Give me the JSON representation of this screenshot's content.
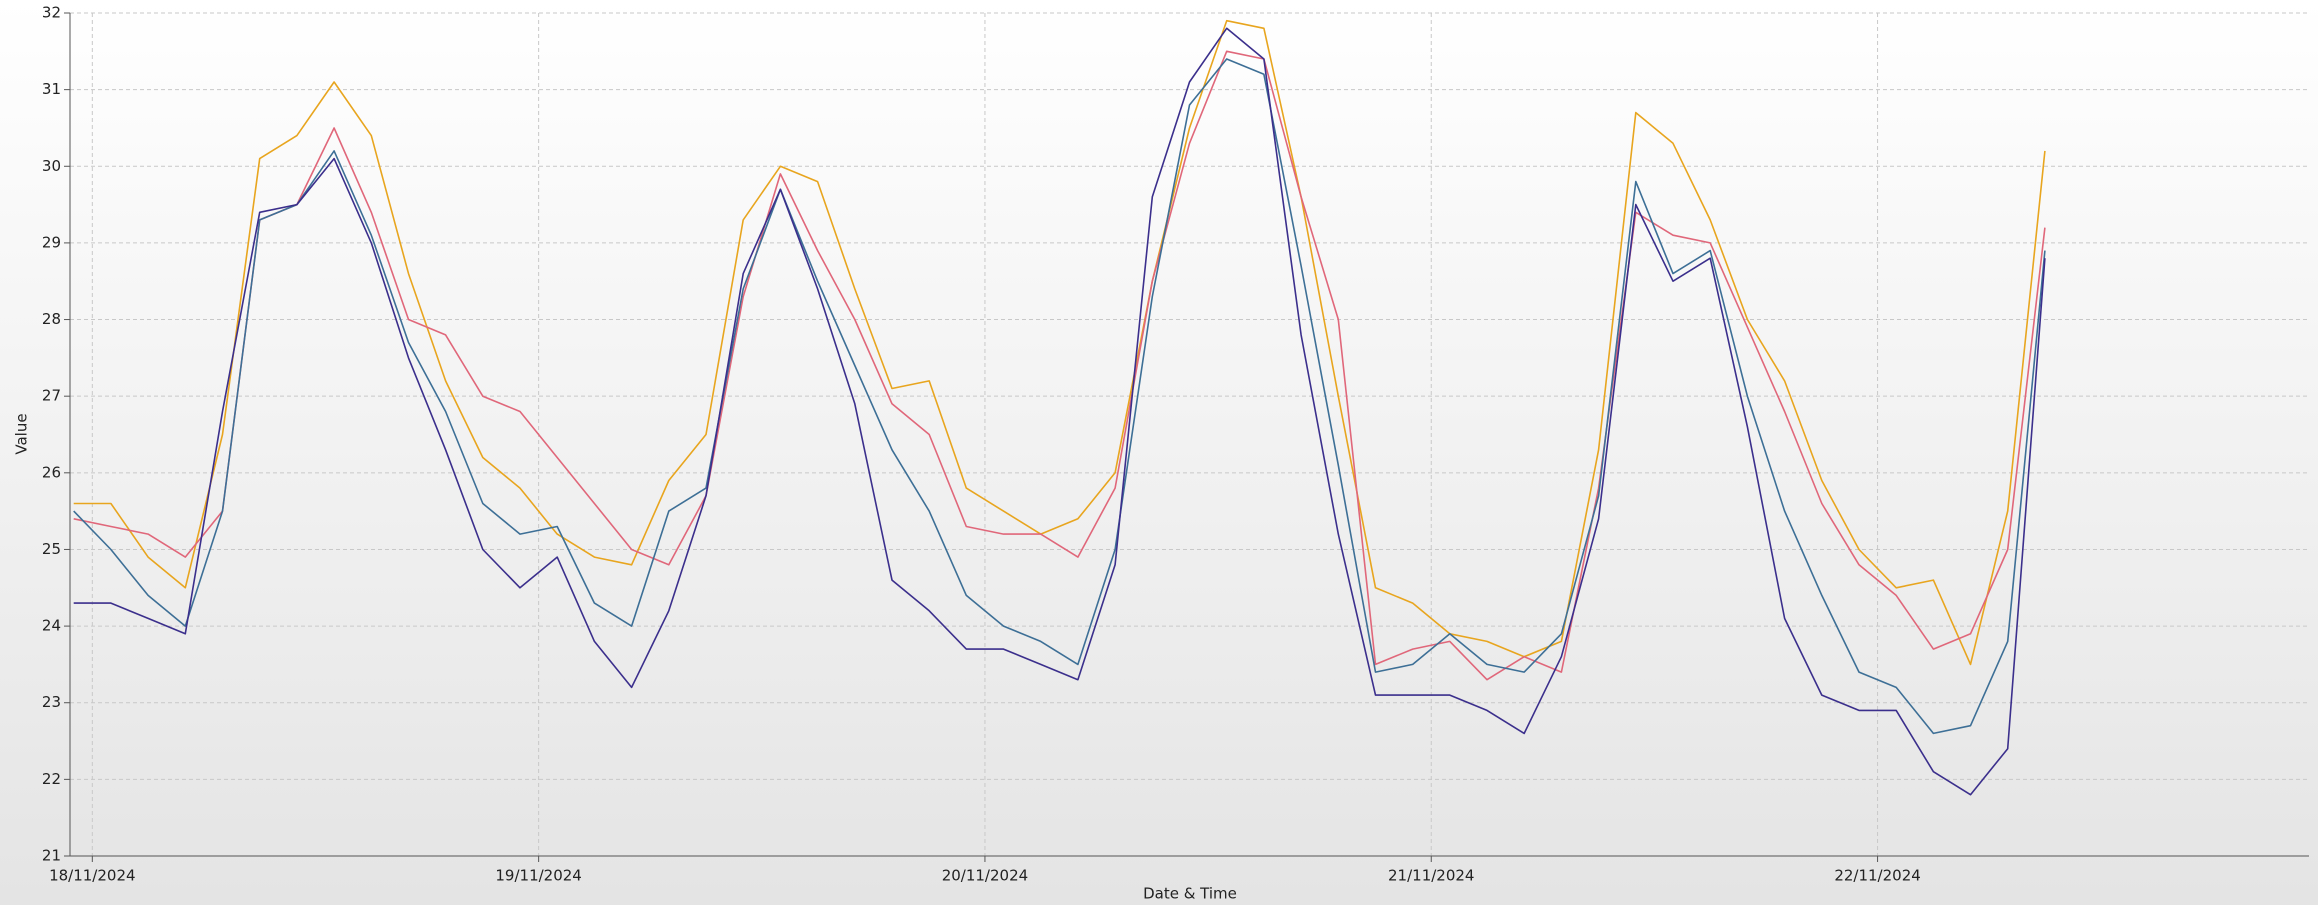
{
  "chart_data": {
    "type": "line",
    "xlabel": "Date & Time",
    "ylabel": "Value",
    "x": [
      -1,
      1,
      3,
      5,
      7,
      9,
      11,
      13,
      15,
      17,
      19,
      21,
      23,
      25,
      27,
      29,
      31,
      33,
      35,
      37,
      39,
      41,
      43,
      45,
      47,
      49,
      51,
      53,
      55,
      57,
      59,
      61,
      63,
      65,
      67,
      69,
      71,
      73,
      75,
      77,
      79,
      81,
      83,
      85,
      87,
      89,
      91,
      93,
      95,
      97,
      99,
      101,
      103,
      105
    ],
    "xlim": [
      -1.2,
      119.2
    ],
    "xticks": [
      {
        "value": 0,
        "label": "18/11/2024"
      },
      {
        "value": 24,
        "label": "19/11/2024"
      },
      {
        "value": 48,
        "label": "20/11/2024"
      },
      {
        "value": 72,
        "label": "21/11/2024"
      },
      {
        "value": 96,
        "label": "22/11/2024"
      }
    ],
    "ylim": [
      21,
      32
    ],
    "yticks": [
      21,
      22,
      23,
      24,
      25,
      26,
      27,
      28,
      29,
      30,
      31,
      32
    ],
    "grid": true,
    "series": [
      {
        "color": "#e8a51e",
        "values": [
          25.6,
          25.6,
          24.9,
          24.5,
          26.5,
          30.1,
          30.4,
          31.1,
          30.4,
          28.6,
          27.2,
          26.2,
          25.8,
          25.2,
          24.9,
          24.8,
          25.9,
          26.5,
          29.3,
          30.0,
          29.8,
          28.4,
          27.1,
          27.2,
          25.8,
          25.5,
          25.2,
          25.4,
          26.0,
          28.5,
          30.5,
          31.9,
          31.8,
          29.6,
          27.0,
          24.5,
          24.3,
          23.9,
          23.8,
          23.6,
          23.8,
          26.3,
          30.7,
          30.3,
          29.3,
          28.0,
          27.2,
          25.9,
          25.0,
          24.5,
          24.6,
          23.5,
          25.5,
          30.2
        ]
      },
      {
        "color": "#e0677a",
        "values": [
          25.4,
          25.3,
          25.2,
          24.9,
          25.5,
          29.3,
          29.5,
          30.5,
          29.4,
          28.0,
          27.8,
          27.0,
          26.8,
          26.2,
          25.6,
          25.0,
          24.8,
          25.7,
          28.3,
          29.9,
          28.9,
          28.0,
          26.9,
          26.5,
          25.3,
          25.2,
          25.2,
          24.9,
          25.8,
          28.5,
          30.3,
          31.5,
          31.4,
          29.6,
          28.0,
          23.5,
          23.7,
          23.8,
          23.3,
          23.6,
          23.4,
          25.8,
          29.4,
          29.1,
          29.0,
          27.9,
          26.8,
          25.6,
          24.8,
          24.4,
          23.7,
          23.9,
          25.0,
          29.2
        ]
      },
      {
        "color": "#3d6f96",
        "values": [
          25.5,
          25.0,
          24.4,
          24.0,
          25.5,
          29.3,
          29.5,
          30.2,
          29.1,
          27.7,
          26.8,
          25.6,
          25.2,
          25.3,
          24.3,
          24.0,
          25.5,
          25.8,
          28.4,
          29.7,
          28.5,
          27.4,
          26.3,
          25.5,
          24.4,
          24.0,
          23.8,
          23.5,
          25.0,
          28.3,
          30.8,
          31.4,
          31.2,
          28.7,
          26.1,
          23.4,
          23.5,
          23.9,
          23.5,
          23.4,
          23.9,
          25.7,
          29.8,
          28.6,
          28.9,
          27.0,
          25.5,
          24.4,
          23.4,
          23.2,
          22.6,
          22.7,
          23.8,
          28.9
        ]
      },
      {
        "color": "#3b2f8c",
        "values": [
          24.3,
          24.3,
          24.1,
          23.9,
          26.8,
          29.4,
          29.5,
          30.1,
          29.0,
          27.5,
          26.3,
          25.0,
          24.5,
          24.9,
          23.8,
          23.2,
          24.2,
          25.7,
          28.6,
          29.7,
          28.4,
          26.9,
          24.6,
          24.2,
          23.7,
          23.7,
          23.5,
          23.3,
          24.8,
          29.6,
          31.1,
          31.8,
          31.4,
          27.8,
          25.2,
          23.1,
          23.1,
          23.1,
          22.9,
          22.6,
          23.6,
          25.4,
          29.5,
          28.5,
          28.8,
          26.6,
          24.1,
          23.1,
          22.9,
          22.9,
          22.1,
          21.8,
          22.4,
          28.8
        ]
      }
    ]
  }
}
